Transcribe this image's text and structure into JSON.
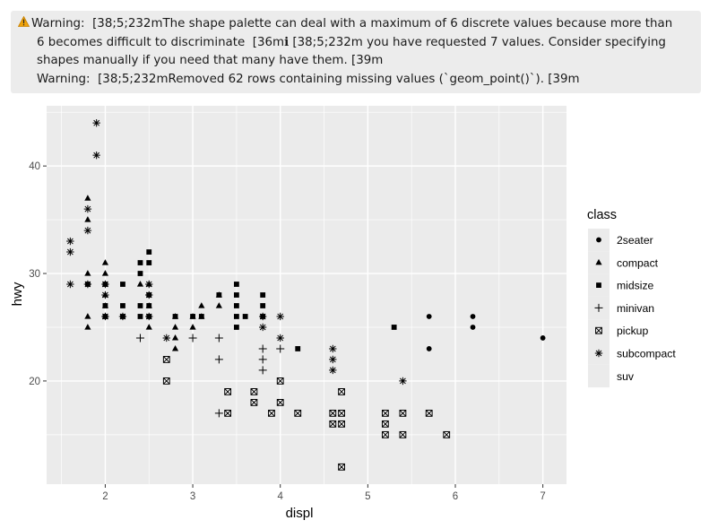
{
  "console": {
    "warning_icon": "warning-triangle-icon",
    "lines": [
      "Warning:  [38;5;232mThe shape palette can deal with a maximum of 6 discrete values because more than",
      "6 becomes difficult to discriminate  [36mℹ [38;5;232m you have requested 7 values. Consider specifying",
      "shapes manually if you need that many have them. [39m",
      "Warning:  [38;5;232mRemoved 62 rows containing missing values (`geom_point()`). [39m"
    ]
  },
  "chart_data": {
    "type": "scatter",
    "xlabel": "displ",
    "ylabel": "hwy",
    "xlim": [
      1.33,
      7.27
    ],
    "ylim": [
      10.4,
      45.6
    ],
    "x_ticks": [
      2,
      3,
      4,
      5,
      6,
      7
    ],
    "x_tick_labels": [
      "2",
      "3",
      "4",
      "5",
      "6",
      "7"
    ],
    "y_ticks": [
      20,
      30,
      40
    ],
    "y_tick_labels": [
      "20",
      "30",
      "40"
    ],
    "grid": true,
    "panel_color": "#ebebeb",
    "grid_color": "#ffffff",
    "legend": {
      "title": "class",
      "placement": "right",
      "entries": [
        {
          "name": "2seater",
          "shape": "circle"
        },
        {
          "name": "compact",
          "shape": "triangle"
        },
        {
          "name": "midsize",
          "shape": "square"
        },
        {
          "name": "minivan",
          "shape": "plus"
        },
        {
          "name": "pickup",
          "shape": "boxed-x"
        },
        {
          "name": "subcompact",
          "shape": "asterisk"
        },
        {
          "name": "suv",
          "shape": "none"
        }
      ]
    },
    "series": [
      {
        "name": "2seater",
        "shape": "circle",
        "points": [
          [
            5.7,
            26
          ],
          [
            5.7,
            23
          ],
          [
            6.2,
            26
          ],
          [
            6.2,
            25
          ],
          [
            7.0,
            24
          ]
        ]
      },
      {
        "name": "compact",
        "shape": "triangle",
        "points": [
          [
            1.8,
            37
          ],
          [
            1.8,
            35
          ],
          [
            1.8,
            30
          ],
          [
            1.8,
            26
          ],
          [
            1.8,
            25
          ],
          [
            2.0,
            31
          ],
          [
            2.0,
            30
          ],
          [
            2.0,
            29
          ],
          [
            2.0,
            28
          ],
          [
            2.0,
            27
          ],
          [
            2.0,
            26
          ],
          [
            2.4,
            29
          ],
          [
            2.5,
            29
          ],
          [
            2.5,
            27
          ],
          [
            2.5,
            25
          ],
          [
            2.8,
            26
          ],
          [
            2.8,
            25
          ],
          [
            2.8,
            24
          ],
          [
            2.8,
            23
          ],
          [
            3.0,
            26
          ],
          [
            3.0,
            25
          ],
          [
            3.1,
            27
          ],
          [
            3.1,
            26
          ],
          [
            3.3,
            28
          ],
          [
            3.3,
            27
          ]
        ]
      },
      {
        "name": "midsize",
        "shape": "square",
        "points": [
          [
            1.8,
            29
          ],
          [
            2.0,
            29
          ],
          [
            2.0,
            27
          ],
          [
            2.0,
            26
          ],
          [
            2.2,
            29
          ],
          [
            2.2,
            27
          ],
          [
            2.2,
            26
          ],
          [
            2.4,
            31
          ],
          [
            2.4,
            30
          ],
          [
            2.4,
            27
          ],
          [
            2.4,
            26
          ],
          [
            2.5,
            32
          ],
          [
            2.5,
            31
          ],
          [
            2.5,
            28
          ],
          [
            2.5,
            27
          ],
          [
            2.5,
            26
          ],
          [
            2.8,
            26
          ],
          [
            3.0,
            26
          ],
          [
            3.1,
            26
          ],
          [
            3.3,
            28
          ],
          [
            3.5,
            29
          ],
          [
            3.5,
            28
          ],
          [
            3.5,
            27
          ],
          [
            3.5,
            26
          ],
          [
            3.5,
            25
          ],
          [
            3.6,
            26
          ],
          [
            3.8,
            28
          ],
          [
            3.8,
            27
          ],
          [
            3.8,
            26
          ],
          [
            4.2,
            23
          ],
          [
            5.3,
            25
          ]
        ]
      },
      {
        "name": "minivan",
        "shape": "plus",
        "points": [
          [
            2.4,
            24
          ],
          [
            3.0,
            24
          ],
          [
            3.3,
            24
          ],
          [
            3.3,
            22
          ],
          [
            3.3,
            17
          ],
          [
            3.8,
            23
          ],
          [
            3.8,
            22
          ],
          [
            3.8,
            21
          ],
          [
            4.0,
            23
          ]
        ]
      },
      {
        "name": "pickup",
        "shape": "boxed-x",
        "points": [
          [
            2.7,
            22
          ],
          [
            2.7,
            20
          ],
          [
            3.4,
            19
          ],
          [
            3.4,
            17
          ],
          [
            3.7,
            19
          ],
          [
            3.7,
            18
          ],
          [
            3.9,
            17
          ],
          [
            4.0,
            20
          ],
          [
            4.0,
            18
          ],
          [
            4.2,
            17
          ],
          [
            4.6,
            17
          ],
          [
            4.6,
            16
          ],
          [
            4.7,
            19
          ],
          [
            4.7,
            17
          ],
          [
            4.7,
            16
          ],
          [
            4.7,
            12
          ],
          [
            5.2,
            17
          ],
          [
            5.2,
            16
          ],
          [
            5.2,
            15
          ],
          [
            5.4,
            17
          ],
          [
            5.4,
            15
          ],
          [
            5.7,
            17
          ],
          [
            5.9,
            15
          ]
        ]
      },
      {
        "name": "subcompact",
        "shape": "asterisk",
        "points": [
          [
            1.6,
            33
          ],
          [
            1.6,
            32
          ],
          [
            1.6,
            29
          ],
          [
            1.8,
            36
          ],
          [
            1.8,
            34
          ],
          [
            1.8,
            29
          ],
          [
            1.9,
            44
          ],
          [
            1.9,
            41
          ],
          [
            2.0,
            29
          ],
          [
            2.0,
            28
          ],
          [
            2.0,
            26
          ],
          [
            2.2,
            26
          ],
          [
            2.5,
            29
          ],
          [
            2.5,
            28
          ],
          [
            2.5,
            26
          ],
          [
            2.7,
            24
          ],
          [
            3.8,
            26
          ],
          [
            3.8,
            25
          ],
          [
            4.0,
            26
          ],
          [
            4.0,
            24
          ],
          [
            4.6,
            23
          ],
          [
            4.6,
            22
          ],
          [
            4.6,
            21
          ],
          [
            5.4,
            20
          ]
        ]
      }
    ]
  }
}
